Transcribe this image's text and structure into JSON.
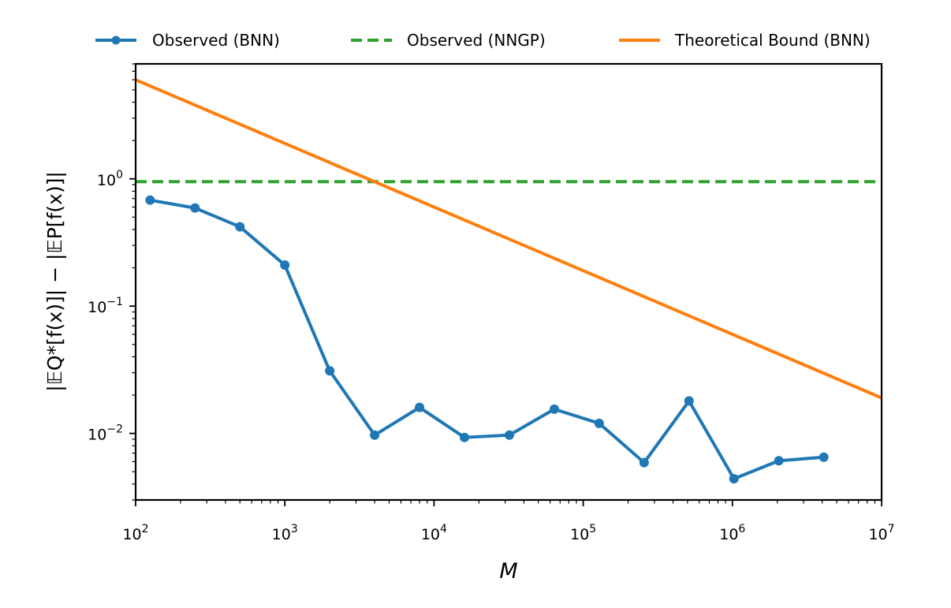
{
  "chart_data": {
    "type": "line",
    "title": "",
    "xlabel": "M",
    "ylabel": "|𝔼Q*[f(x)]| − |𝔼P[f(x)]|",
    "x_scale": "log",
    "y_scale": "log",
    "xlim": [
      100,
      10000000
    ],
    "ylim": [
      0.003,
      8.0
    ],
    "x_ticks": [
      {
        "value": 100,
        "base": "10",
        "exp": "2"
      },
      {
        "value": 1000,
        "base": "10",
        "exp": "3"
      },
      {
        "value": 10000,
        "base": "10",
        "exp": "4"
      },
      {
        "value": 100000,
        "base": "10",
        "exp": "5"
      },
      {
        "value": 1000000,
        "base": "10",
        "exp": "6"
      },
      {
        "value": 10000000,
        "base": "10",
        "exp": "7"
      }
    ],
    "y_ticks": [
      {
        "value": 1,
        "base": "10",
        "exp": "0"
      },
      {
        "value": 0.1,
        "base": "10",
        "exp": "−1"
      },
      {
        "value": 0.01,
        "base": "10",
        "exp": "−2"
      }
    ],
    "grid": false,
    "legend_position": "top, above plot",
    "series": [
      {
        "name": "Observed (BNN)",
        "style": "line-with-markers",
        "color": "#1f77b4",
        "x": [
          125,
          250,
          500,
          1000,
          2000,
          4000,
          8000,
          16000,
          32000,
          64000,
          128000,
          256000,
          512000,
          1024000,
          2048000,
          4096000
        ],
        "y": [
          0.68,
          0.59,
          0.42,
          0.21,
          0.031,
          0.0097,
          0.016,
          0.0093,
          0.0097,
          0.0155,
          0.012,
          0.0059,
          0.018,
          0.0044,
          0.0061,
          0.0065
        ]
      },
      {
        "name": "Observed (NNGP)",
        "style": "dashed",
        "color": "#2ca02c",
        "x": [
          100,
          10000000
        ],
        "y": [
          0.95,
          0.95
        ]
      },
      {
        "name": "Theoretical Bound (BNN)",
        "style": "solid",
        "color": "#ff7f0e",
        "x": [
          100,
          10000000
        ],
        "y": [
          6.0,
          0.019
        ]
      }
    ]
  }
}
